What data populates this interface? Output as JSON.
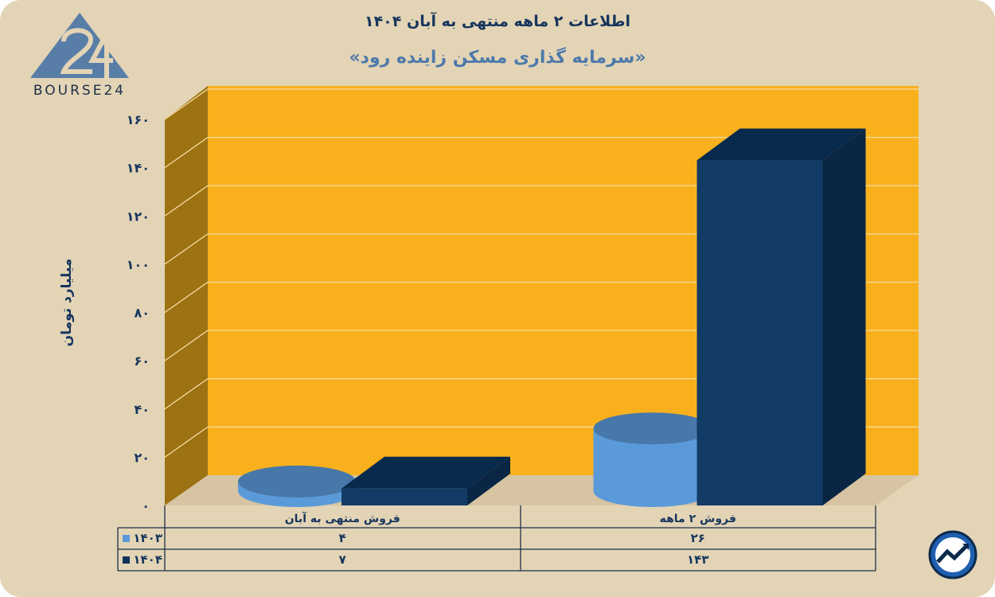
{
  "title": "اطلاعات ۲ ماهه منتهی به آبان ۱۴۰۴",
  "subtitle": "«سرمایه گذاری مسکن زاینده رود»",
  "logo": {
    "text": "BOURSE24",
    "icon": "bourse24-logo-icon"
  },
  "badge_icon": "trend-up-chart-icon",
  "colors": {
    "background": "#e3d4b6",
    "wall": "#f8b11d",
    "side_wall": "#9c7212",
    "series_1403": "#5b9ad9",
    "series_1404": "#0d3157",
    "text": "#16355c"
  },
  "chart_data": {
    "type": "bar",
    "title": "«سرمایه گذاری مسکن زاینده رود»",
    "ylabel": "میلیارد تومان",
    "ylim": [
      0,
      160
    ],
    "y_ticks": [
      "۰",
      "۲۰",
      "۴۰",
      "۶۰",
      "۸۰",
      "۱۰۰",
      "۱۲۰",
      "۱۴۰",
      "۱۶۰"
    ],
    "categories": [
      "فروش منتهی به  آبان",
      "فروش ۲  ماهه"
    ],
    "series": [
      {
        "name": "۱۴۰۳",
        "shape": "cylinder",
        "values": [
          4,
          26
        ],
        "labels": [
          "۴",
          "۲۶"
        ]
      },
      {
        "name": "۱۴۰۴",
        "shape": "box",
        "values": [
          7,
          143
        ],
        "labels": [
          "۷",
          "۱۴۳"
        ]
      }
    ],
    "data_table": true,
    "grid": true,
    "legend": "table-left"
  }
}
